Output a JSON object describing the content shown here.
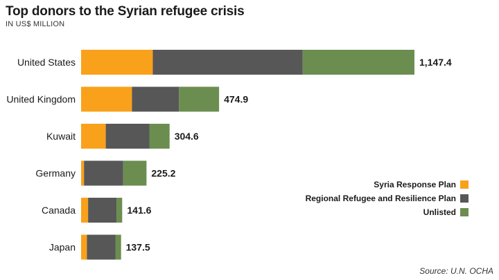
{
  "chart_data": {
    "type": "bar",
    "orientation": "horizontal",
    "stacked": true,
    "title": "Top donors to the Syrian refugee crisis",
    "subtitle": "IN US$ MILLION",
    "categories": [
      "United States",
      "United Kingdom",
      "Kuwait",
      "Germany",
      "Canada",
      "Japan"
    ],
    "series": [
      {
        "name": "Syria Response Plan",
        "color": "#f9a11b",
        "values": [
          247.0,
          175.0,
          85.0,
          10.0,
          24.0,
          20.0
        ]
      },
      {
        "name": "Regional Refugee and Resilience Plan",
        "color": "#575757",
        "values": [
          516.0,
          162.0,
          150.0,
          135.0,
          98.0,
          98.0
        ]
      },
      {
        "name": "Unlisted",
        "color": "#6b8e50",
        "values": [
          384.4,
          137.9,
          69.6,
          80.2,
          19.6,
          19.5
        ]
      }
    ],
    "totals": [
      "1,147.4",
      "474.9",
      "304.6",
      "225.2",
      "141.6",
      "137.5"
    ],
    "xlim": [
      0,
      1147.4
    ],
    "grid": false,
    "legend_position": "right"
  },
  "source": "Source: U.N. OCHA"
}
